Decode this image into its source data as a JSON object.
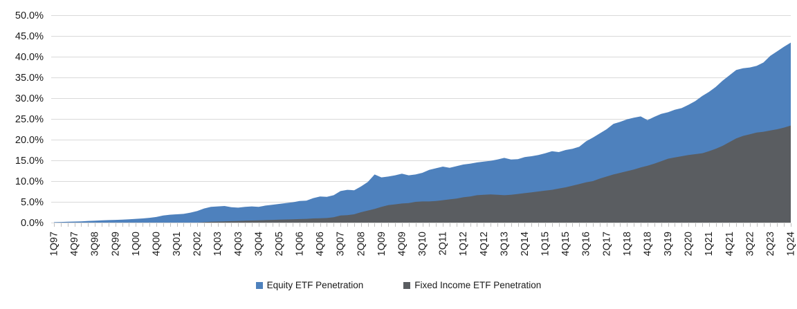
{
  "chart_data": {
    "type": "area",
    "style": "overlapping-areas",
    "draw_order_note": "both series baseline 0; fixed-income area drawn in front of equity area",
    "title": "",
    "xlabel": "",
    "ylabel": "",
    "grid": true,
    "legend_position": "bottom-center",
    "colors": {
      "equity": "#4E81BD",
      "fixed_income": "#5A5D61",
      "gridline": "#D9D9D9",
      "axis_tick": "#BFBFBF",
      "text": "#1a1a1a"
    },
    "y_axis": {
      "min": 0,
      "max": 50,
      "step": 5,
      "tick_labels": [
        "0.0%",
        "5.0%",
        "10.0%",
        "15.0%",
        "20.0%",
        "25.0%",
        "30.0%",
        "35.0%",
        "40.0%",
        "45.0%",
        "50.0%"
      ]
    },
    "x_axis": {
      "label_every_nth_quarter": 3,
      "visible_tick_labels": [
        "1Q97",
        "4Q97",
        "3Q98",
        "2Q99",
        "1Q00",
        "4Q00",
        "3Q01",
        "2Q02",
        "1Q03",
        "4Q03",
        "3Q04",
        "2Q05",
        "1Q06",
        "4Q06",
        "3Q07",
        "2Q08",
        "1Q09",
        "4Q09",
        "3Q10",
        "2Q11",
        "1Q12",
        "4Q12",
        "3Q13",
        "2Q14",
        "1Q15",
        "4Q15",
        "3Q16",
        "2Q17",
        "1Q18",
        "4Q18",
        "3Q19",
        "2Q20",
        "1Q21",
        "4Q21",
        "3Q22",
        "2Q23",
        "1Q24"
      ]
    },
    "quarters": [
      "1Q97",
      "2Q97",
      "3Q97",
      "4Q97",
      "1Q98",
      "2Q98",
      "3Q98",
      "4Q98",
      "1Q99",
      "2Q99",
      "3Q99",
      "4Q99",
      "1Q00",
      "2Q00",
      "3Q00",
      "4Q00",
      "1Q01",
      "2Q01",
      "3Q01",
      "4Q01",
      "1Q02",
      "2Q02",
      "3Q02",
      "4Q02",
      "1Q03",
      "2Q03",
      "3Q03",
      "4Q03",
      "1Q04",
      "2Q04",
      "3Q04",
      "4Q04",
      "1Q05",
      "2Q05",
      "3Q05",
      "4Q05",
      "1Q06",
      "2Q06",
      "3Q06",
      "4Q06",
      "1Q07",
      "2Q07",
      "3Q07",
      "4Q07",
      "1Q08",
      "2Q08",
      "3Q08",
      "4Q08",
      "1Q09",
      "2Q09",
      "3Q09",
      "4Q09",
      "1Q10",
      "2Q10",
      "3Q10",
      "4Q10",
      "1Q11",
      "2Q11",
      "3Q11",
      "4Q11",
      "1Q12",
      "2Q12",
      "3Q12",
      "4Q12",
      "1Q13",
      "2Q13",
      "3Q13",
      "4Q13",
      "1Q14",
      "2Q14",
      "3Q14",
      "4Q14",
      "1Q15",
      "2Q15",
      "3Q15",
      "4Q15",
      "1Q16",
      "2Q16",
      "3Q16",
      "4Q16",
      "1Q17",
      "2Q17",
      "3Q17",
      "4Q17",
      "1Q18",
      "2Q18",
      "3Q18",
      "4Q18",
      "1Q19",
      "2Q19",
      "3Q19",
      "4Q19",
      "1Q20",
      "2Q20",
      "3Q20",
      "4Q20",
      "1Q21",
      "2Q21",
      "3Q21",
      "4Q21",
      "1Q22",
      "2Q22",
      "3Q22",
      "4Q22",
      "1Q23",
      "2Q23",
      "3Q23",
      "4Q23",
      "1Q24"
    ],
    "series": [
      {
        "name": "Equity ETF Penetration",
        "color": "#4E81BD",
        "unit": "%",
        "values": [
          0.1,
          0.15,
          0.2,
          0.25,
          0.3,
          0.4,
          0.45,
          0.55,
          0.6,
          0.65,
          0.7,
          0.8,
          0.9,
          1.0,
          1.15,
          1.35,
          1.7,
          1.9,
          2.0,
          2.1,
          2.4,
          2.8,
          3.4,
          3.8,
          3.9,
          4.0,
          3.7,
          3.6,
          3.8,
          3.9,
          3.8,
          4.1,
          4.3,
          4.5,
          4.7,
          4.9,
          5.2,
          5.3,
          5.9,
          6.3,
          6.2,
          6.6,
          7.6,
          7.9,
          7.8,
          8.7,
          9.8,
          11.6,
          10.9,
          11.1,
          11.4,
          11.8,
          11.4,
          11.6,
          12.0,
          12.7,
          13.1,
          13.5,
          13.2,
          13.6,
          14.0,
          14.2,
          14.5,
          14.7,
          14.9,
          15.2,
          15.6,
          15.2,
          15.3,
          15.8,
          16.0,
          16.3,
          16.7,
          17.2,
          17.0,
          17.5,
          17.8,
          18.3,
          19.6,
          20.5,
          21.5,
          22.5,
          23.8,
          24.3,
          24.9,
          25.3,
          25.6,
          24.7,
          25.5,
          26.2,
          26.6,
          27.2,
          27.6,
          28.4,
          29.3,
          30.5,
          31.5,
          32.7,
          34.2,
          35.5,
          36.8,
          37.2,
          37.4,
          37.8,
          38.6,
          40.2,
          41.3,
          42.4,
          43.4
        ]
      },
      {
        "name": "Fixed Income ETF Penetration",
        "color": "#5A5D61",
        "unit": "%",
        "values": [
          0,
          0,
          0,
          0,
          0,
          0,
          0,
          0,
          0,
          0,
          0,
          0,
          0,
          0,
          0,
          0,
          0,
          0,
          0,
          0,
          0,
          0,
          0.1,
          0.2,
          0.25,
          0.3,
          0.35,
          0.4,
          0.45,
          0.5,
          0.55,
          0.6,
          0.65,
          0.7,
          0.75,
          0.8,
          0.85,
          0.9,
          1.0,
          1.05,
          1.1,
          1.3,
          1.7,
          1.8,
          2.0,
          2.5,
          2.9,
          3.3,
          3.8,
          4.2,
          4.4,
          4.6,
          4.7,
          5.0,
          5.1,
          5.1,
          5.2,
          5.4,
          5.6,
          5.8,
          6.1,
          6.3,
          6.6,
          6.7,
          6.8,
          6.7,
          6.6,
          6.7,
          6.9,
          7.1,
          7.3,
          7.5,
          7.7,
          7.9,
          8.2,
          8.5,
          8.9,
          9.3,
          9.7,
          10.0,
          10.6,
          11.1,
          11.6,
          12.0,
          12.4,
          12.8,
          13.3,
          13.7,
          14.2,
          14.8,
          15.4,
          15.7,
          16.0,
          16.3,
          16.5,
          16.7,
          17.2,
          17.8,
          18.5,
          19.4,
          20.3,
          20.9,
          21.3,
          21.7,
          21.9,
          22.2,
          22.5,
          22.9,
          23.4
        ]
      }
    ]
  }
}
